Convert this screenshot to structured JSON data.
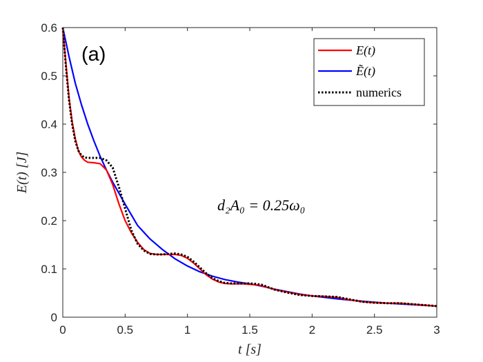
{
  "chart_data": {
    "type": "line",
    "title": "",
    "panel_label": "(a)",
    "xlabel": "t [s]",
    "ylabel": "E(t) [J]",
    "xlim": [
      0,
      3
    ],
    "ylim": [
      0,
      0.6
    ],
    "xticks": [
      0,
      0.5,
      1,
      1.5,
      2,
      2.5,
      3
    ],
    "xtick_labels": [
      "0",
      "0.5",
      "1",
      "1.5",
      "2",
      "2.5",
      "3"
    ],
    "yticks": [
      0,
      0.1,
      0.2,
      0.3,
      0.4,
      0.5,
      0.6
    ],
    "ytick_labels": [
      "0",
      "0.1",
      "0.2",
      "0.3",
      "0.4",
      "0.5",
      "0.6"
    ],
    "annotation": "d₂A₀ = 0.25ω₀",
    "legend_position": "top-right",
    "series": [
      {
        "name": "E(t)",
        "color": "#ff0000",
        "style": "solid",
        "x": [
          0,
          0.025,
          0.05,
          0.075,
          0.1,
          0.125,
          0.15,
          0.175,
          0.2,
          0.25,
          0.3,
          0.35,
          0.4,
          0.45,
          0.5,
          0.55,
          0.6,
          0.65,
          0.7,
          0.75,
          0.8,
          0.85,
          0.9,
          0.95,
          1.0,
          1.05,
          1.1,
          1.15,
          1.2,
          1.25,
          1.3,
          1.35,
          1.4,
          1.45,
          1.5,
          1.55,
          1.6,
          1.65,
          1.7,
          1.8,
          1.9,
          2.0,
          2.1,
          2.2,
          2.3,
          2.4,
          2.5,
          2.6,
          2.7,
          2.8,
          2.9,
          3.0
        ],
        "y": [
          0.6,
          0.525,
          0.455,
          0.405,
          0.37,
          0.345,
          0.332,
          0.325,
          0.321,
          0.32,
          0.318,
          0.305,
          0.275,
          0.235,
          0.2,
          0.175,
          0.155,
          0.14,
          0.132,
          0.13,
          0.13,
          0.13,
          0.13,
          0.128,
          0.122,
          0.112,
          0.1,
          0.088,
          0.079,
          0.073,
          0.07,
          0.069,
          0.069,
          0.069,
          0.068,
          0.067,
          0.065,
          0.061,
          0.057,
          0.052,
          0.047,
          0.044,
          0.043,
          0.041,
          0.036,
          0.032,
          0.03,
          0.029,
          0.029,
          0.027,
          0.025,
          0.023
        ]
      },
      {
        "name": "Ẽ(t)",
        "color": "#0000ff",
        "style": "solid",
        "x": [
          0,
          0.05,
          0.1,
          0.15,
          0.2,
          0.25,
          0.3,
          0.35,
          0.4,
          0.45,
          0.5,
          0.55,
          0.6,
          0.7,
          0.8,
          0.9,
          1.0,
          1.1,
          1.2,
          1.3,
          1.4,
          1.5,
          1.6,
          1.7,
          1.8,
          1.9,
          2.0,
          2.2,
          2.4,
          2.6,
          2.8,
          3.0
        ],
        "y": [
          0.6,
          0.54,
          0.485,
          0.44,
          0.4,
          0.365,
          0.333,
          0.305,
          0.28,
          0.257,
          0.234,
          0.212,
          0.19,
          0.162,
          0.14,
          0.121,
          0.106,
          0.094,
          0.085,
          0.078,
          0.073,
          0.069,
          0.064,
          0.058,
          0.053,
          0.048,
          0.044,
          0.038,
          0.033,
          0.029,
          0.026,
          0.023
        ]
      },
      {
        "name": "numerics",
        "color": "#000000",
        "style": "dotted",
        "x": [
          0,
          0.025,
          0.05,
          0.075,
          0.1,
          0.125,
          0.15,
          0.175,
          0.2,
          0.25,
          0.3,
          0.35,
          0.4,
          0.45,
          0.5,
          0.55,
          0.6,
          0.65,
          0.7,
          0.75,
          0.8,
          0.85,
          0.9,
          0.95,
          1.0,
          1.05,
          1.1,
          1.15,
          1.2,
          1.25,
          1.3,
          1.35,
          1.4,
          1.45,
          1.5,
          1.55,
          1.6,
          1.65,
          1.7,
          1.8,
          1.9,
          2.0,
          2.1,
          2.2,
          2.3,
          2.4,
          2.5,
          2.6,
          2.7,
          2.8,
          2.9,
          3.0
        ],
        "y": [
          0.6,
          0.52,
          0.45,
          0.4,
          0.365,
          0.345,
          0.335,
          0.331,
          0.33,
          0.33,
          0.33,
          0.325,
          0.31,
          0.27,
          0.225,
          0.18,
          0.152,
          0.138,
          0.131,
          0.13,
          0.13,
          0.131,
          0.132,
          0.13,
          0.125,
          0.115,
          0.103,
          0.091,
          0.081,
          0.075,
          0.071,
          0.07,
          0.07,
          0.07,
          0.07,
          0.069,
          0.067,
          0.062,
          0.057,
          0.051,
          0.046,
          0.044,
          0.043,
          0.042,
          0.037,
          0.032,
          0.03,
          0.029,
          0.029,
          0.027,
          0.025,
          0.023
        ]
      }
    ]
  }
}
